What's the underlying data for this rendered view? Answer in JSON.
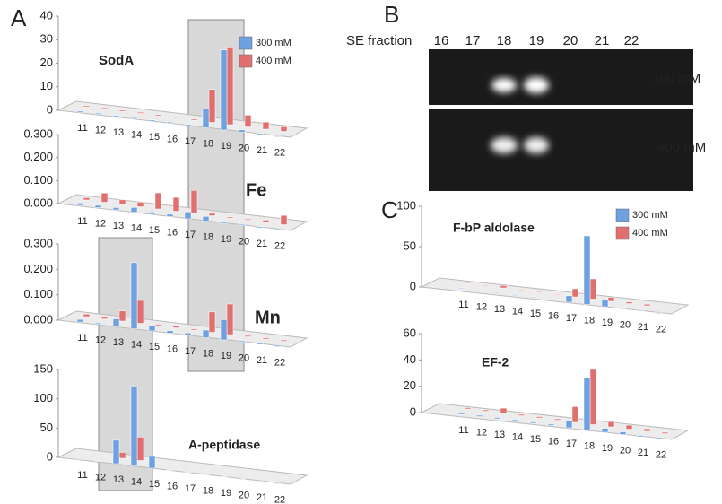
{
  "panel_labels": [
    "A",
    "B",
    "C"
  ],
  "gel": {
    "lane_title": "SE fraction",
    "lanes": [
      "16",
      "17",
      "18",
      "19",
      "20",
      "21",
      "22"
    ],
    "rows": [
      "300 mM",
      "400 mM"
    ]
  },
  "chart_data": [
    {
      "type": "bar",
      "title": "SodA",
      "categories": [
        "11",
        "12",
        "13",
        "14",
        "15",
        "16",
        "17",
        "18",
        "19",
        "20",
        "21",
        "22"
      ],
      "series": [
        {
          "name": "300 mM",
          "color": "#6fa0e0",
          "values": [
            0.5,
            0.5,
            0.5,
            0.5,
            0.5,
            0.5,
            0.5,
            8,
            34,
            1,
            0.5,
            0.3
          ]
        },
        {
          "name": "400 mM",
          "color": "#e07070",
          "values": [
            0.5,
            0.5,
            0.5,
            0.5,
            0.5,
            0.5,
            0.5,
            14,
            33,
            5,
            3,
            2
          ]
        }
      ],
      "ylim": [
        0,
        40
      ],
      "yticks": [
        0,
        10,
        20,
        30,
        40
      ]
    },
    {
      "type": "bar",
      "title": "Fe",
      "categories": [
        "11",
        "12",
        "13",
        "14",
        "15",
        "16",
        "17",
        "18",
        "19",
        "20",
        "21",
        "22"
      ],
      "series": [
        {
          "color": "#6fa0e0",
          "values": [
            0.01,
            0.01,
            0.01,
            0.02,
            0.01,
            0.01,
            0.03,
            0.02,
            0.005,
            0.005,
            0.005,
            0.005
          ]
        },
        {
          "color": "#e07070",
          "values": [
            0.01,
            0.04,
            0.02,
            0.02,
            0.07,
            0.06,
            0.1,
            0.01,
            0.005,
            0.005,
            0.01,
            0.04
          ]
        }
      ],
      "ylim": [
        0,
        0.3
      ],
      "yticks": [
        {
          "value": 0,
          "label": "0.000"
        },
        {
          "value": 0.1,
          "label": "0.100"
        },
        {
          "value": 0.2,
          "label": "0.200"
        },
        {
          "value": 0.3,
          "label": "0.300"
        }
      ]
    },
    {
      "type": "bar",
      "title": "Mn",
      "categories": [
        "11",
        "12",
        "13",
        "14",
        "15",
        "16",
        "17",
        "18",
        "19",
        "20",
        "21",
        "22"
      ],
      "series": [
        {
          "color": "#6fa0e0",
          "values": [
            0.01,
            0.005,
            0.03,
            0.26,
            0.02,
            0.01,
            0.01,
            0.03,
            0.08,
            0.005,
            0.005,
            0.005
          ]
        },
        {
          "color": "#e07070",
          "values": [
            0.01,
            0.01,
            0.04,
            0.09,
            0.005,
            0.01,
            0.005,
            0.08,
            0.12,
            0.005,
            0.005,
            0.005
          ]
        }
      ],
      "ylim": [
        0,
        0.3
      ],
      "yticks": [
        {
          "value": 0,
          "label": "0.000"
        },
        {
          "value": 0.1,
          "label": "0.100"
        },
        {
          "value": 0.2,
          "label": "0.200"
        },
        {
          "value": 0.3,
          "label": "0.300"
        }
      ]
    },
    {
      "type": "bar",
      "title": "A-peptidase",
      "categories": [
        "11",
        "12",
        "13",
        "14",
        "15",
        "16",
        "17",
        "18",
        "19",
        "20",
        "21",
        "22"
      ],
      "series": [
        {
          "color": "#6fa0e0",
          "values": [
            1,
            1,
            40,
            135,
            20,
            1,
            1,
            1,
            1,
            1,
            1,
            1
          ]
        },
        {
          "color": "#e07070",
          "values": [
            1,
            1,
            10,
            40,
            1,
            1,
            1,
            1,
            1,
            1,
            1,
            1
          ]
        }
      ],
      "ylim": [
        0,
        150
      ],
      "yticks": [
        0,
        50,
        100,
        150
      ]
    },
    {
      "type": "bar",
      "title": "F-bP aldolase",
      "categories": [
        "11",
        "12",
        "13",
        "14",
        "15",
        "16",
        "17",
        "18",
        "19",
        "20",
        "21",
        "22"
      ],
      "series": [
        {
          "name": "300 mM",
          "color": "#6fa0e0",
          "values": [
            1,
            1,
            1,
            1,
            1,
            1,
            8,
            85,
            8,
            2,
            1,
            1
          ]
        },
        {
          "name": "400 mM",
          "color": "#e07070",
          "values": [
            1,
            1,
            3,
            1,
            1,
            1,
            10,
            25,
            5,
            2,
            2,
            1
          ]
        }
      ],
      "ylim": [
        0,
        100
      ],
      "yticks": [
        0,
        50,
        100
      ]
    },
    {
      "type": "bar",
      "title": "EF-2",
      "categories": [
        "11",
        "12",
        "13",
        "14",
        "15",
        "16",
        "17",
        "18",
        "19",
        "20",
        "21",
        "22"
      ],
      "series": [
        {
          "color": "#6fa0e0",
          "values": [
            1,
            1,
            1,
            1,
            1,
            1,
            5,
            40,
            3,
            2,
            1,
            1
          ]
        },
        {
          "color": "#e07070",
          "values": [
            1,
            1,
            4,
            1,
            1,
            1,
            12,
            42,
            4,
            3,
            2,
            1
          ]
        }
      ],
      "ylim": [
        0,
        60
      ],
      "yticks": [
        0,
        20,
        40,
        60
      ]
    }
  ]
}
